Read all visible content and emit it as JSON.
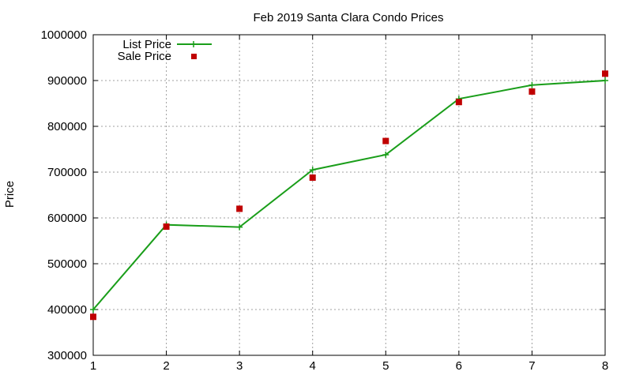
{
  "chart_data": {
    "type": "line",
    "title": "Feb 2019 Santa Clara Condo Prices",
    "xlabel": "",
    "ylabel": "Price",
    "xlim": [
      1,
      8
    ],
    "ylim": [
      300000,
      1000000
    ],
    "x_ticks": [
      1,
      2,
      3,
      4,
      5,
      6,
      7,
      8
    ],
    "y_ticks": [
      300000,
      400000,
      500000,
      600000,
      700000,
      800000,
      900000,
      1000000
    ],
    "grid": true,
    "legend_position": "top-left",
    "series": [
      {
        "name": "List Price",
        "style": "line+cross",
        "color": "#1a9e1a",
        "x": [
          1,
          2,
          3,
          4,
          5,
          6,
          7,
          8
        ],
        "values": [
          400000,
          585000,
          580000,
          705000,
          738000,
          860000,
          890000,
          900000
        ]
      },
      {
        "name": "Sale Price",
        "style": "square-marker",
        "color": "#c00000",
        "x": [
          1,
          2,
          3,
          4,
          5,
          6,
          7,
          8
        ],
        "values": [
          384000,
          581000,
          620000,
          688000,
          768000,
          853000,
          876000,
          915000
        ]
      }
    ]
  }
}
